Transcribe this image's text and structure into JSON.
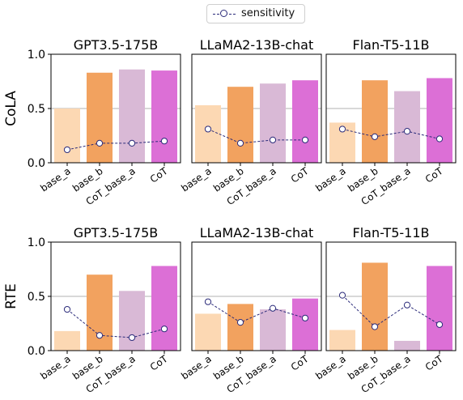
{
  "legend": {
    "label": "sensitivity"
  },
  "colors": {
    "base_a": "#fcd8b3",
    "base_b": "#f2a25f",
    "CoT_base_a": "#d9b9d6",
    "CoT": "#dc6fd6",
    "sensitivity": "#2b2b7a"
  },
  "chart_data": [
    {
      "type": "bar",
      "title": "GPT3.5-175B",
      "ylabel": "CoLA",
      "ylim": [
        0,
        1
      ],
      "yticks": [
        "0.0",
        "0.5",
        "1.0"
      ],
      "categories": [
        "base_a",
        "base_b",
        "CoT_base_a",
        "CoT"
      ],
      "values": [
        0.5,
        0.83,
        0.86,
        0.85
      ],
      "sensitivity": [
        0.12,
        0.18,
        0.18,
        0.2
      ]
    },
    {
      "type": "bar",
      "title": "LLaMA2-13B-chat",
      "ylabel": "",
      "ylim": [
        0,
        1
      ],
      "categories": [
        "base_a",
        "base_b",
        "CoT_base_a",
        "CoT"
      ],
      "values": [
        0.53,
        0.7,
        0.73,
        0.76
      ],
      "sensitivity": [
        0.31,
        0.18,
        0.21,
        0.21
      ]
    },
    {
      "type": "bar",
      "title": "Flan-T5-11B",
      "ylabel": "",
      "ylim": [
        0,
        1
      ],
      "categories": [
        "base_a",
        "base_b",
        "CoT_base_a",
        "CoT"
      ],
      "values": [
        0.37,
        0.76,
        0.66,
        0.78
      ],
      "sensitivity": [
        0.31,
        0.24,
        0.29,
        0.22
      ]
    },
    {
      "type": "bar",
      "title": "GPT3.5-175B",
      "ylabel": "RTE",
      "ylim": [
        0,
        1
      ],
      "yticks": [
        "0.0",
        "0.5",
        "1.0"
      ],
      "categories": [
        "base_a",
        "base_b",
        "CoT_base_a",
        "CoT"
      ],
      "values": [
        0.18,
        0.7,
        0.55,
        0.78
      ],
      "sensitivity": [
        0.38,
        0.14,
        0.12,
        0.2
      ]
    },
    {
      "type": "bar",
      "title": "LLaMA2-13B-chat",
      "ylabel": "",
      "ylim": [
        0,
        1
      ],
      "categories": [
        "base_a",
        "base_b",
        "CoT_base_a",
        "CoT"
      ],
      "values": [
        0.34,
        0.43,
        0.38,
        0.48
      ],
      "sensitivity": [
        0.45,
        0.26,
        0.39,
        0.3
      ]
    },
    {
      "type": "bar",
      "title": "Flan-T5-11B",
      "ylabel": "",
      "ylim": [
        0,
        1
      ],
      "categories": [
        "base_a",
        "base_b",
        "CoT_base_a",
        "CoT"
      ],
      "values": [
        0.19,
        0.81,
        0.09,
        0.78
      ],
      "sensitivity": [
        0.51,
        0.22,
        0.42,
        0.24
      ]
    }
  ]
}
